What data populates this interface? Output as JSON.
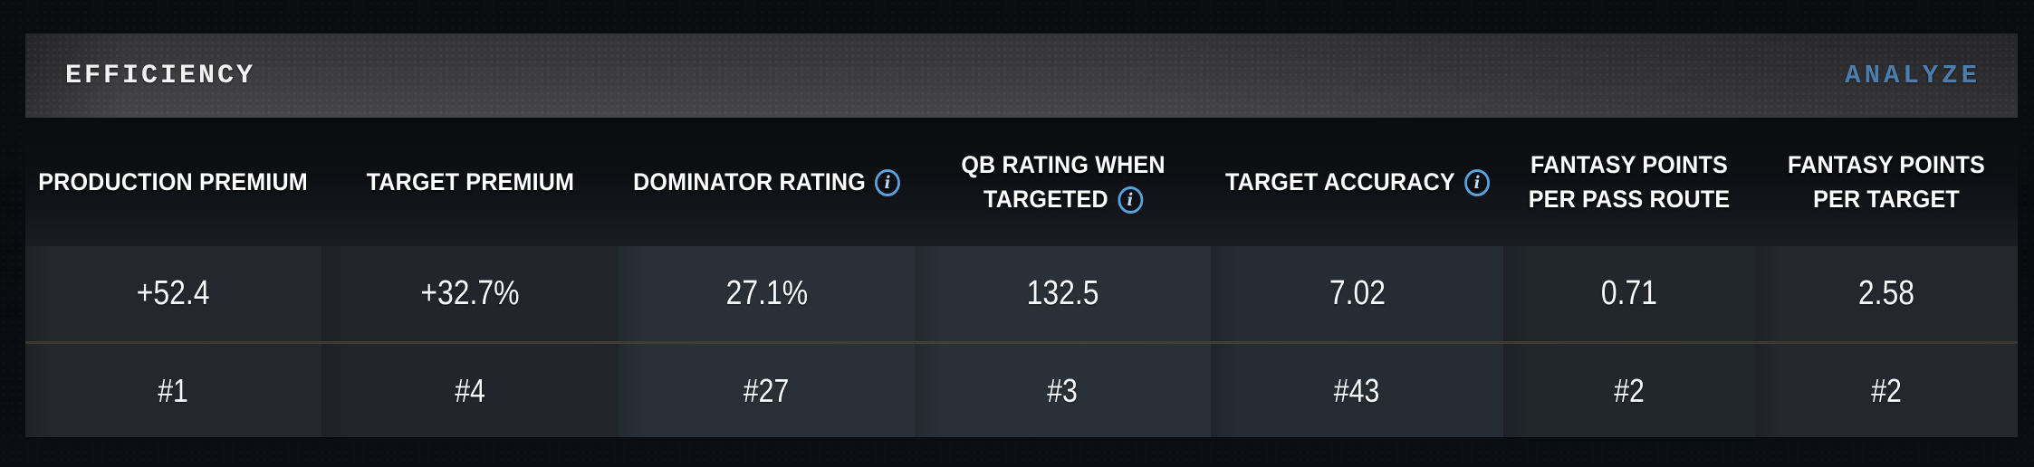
{
  "panel": {
    "title": "EFFICIENCY",
    "action_label": "ANALYZE"
  },
  "icons": {
    "info": "i"
  },
  "colors": {
    "accent_blue": "#4d7dac",
    "info_icon_blue": "#56a3de",
    "divider_brown": "#46402f",
    "row_bg": "#262b32",
    "page_bg": "#0a0c10"
  },
  "table": {
    "columns": [
      {
        "label": "PRODUCTION PREMIUM",
        "has_info_icon": false,
        "value": "+52.4",
        "rank": "#1"
      },
      {
        "label": "TARGET PREMIUM",
        "has_info_icon": false,
        "value": "+32.7%",
        "rank": "#4"
      },
      {
        "label": "DOMINATOR RATING",
        "has_info_icon": true,
        "value": "27.1%",
        "rank": "#27"
      },
      {
        "label": "QB RATING WHEN TARGETED",
        "has_info_icon": true,
        "value": "132.5",
        "rank": "#3"
      },
      {
        "label": "TARGET ACCURACY",
        "has_info_icon": true,
        "value": "7.02",
        "rank": "#43"
      },
      {
        "label": "FANTASY POINTS PER PASS ROUTE",
        "has_info_icon": false,
        "value": "0.71",
        "rank": "#2"
      },
      {
        "label": "FANTASY POINTS PER TARGET",
        "has_info_icon": false,
        "value": "2.58",
        "rank": "#2"
      }
    ]
  }
}
